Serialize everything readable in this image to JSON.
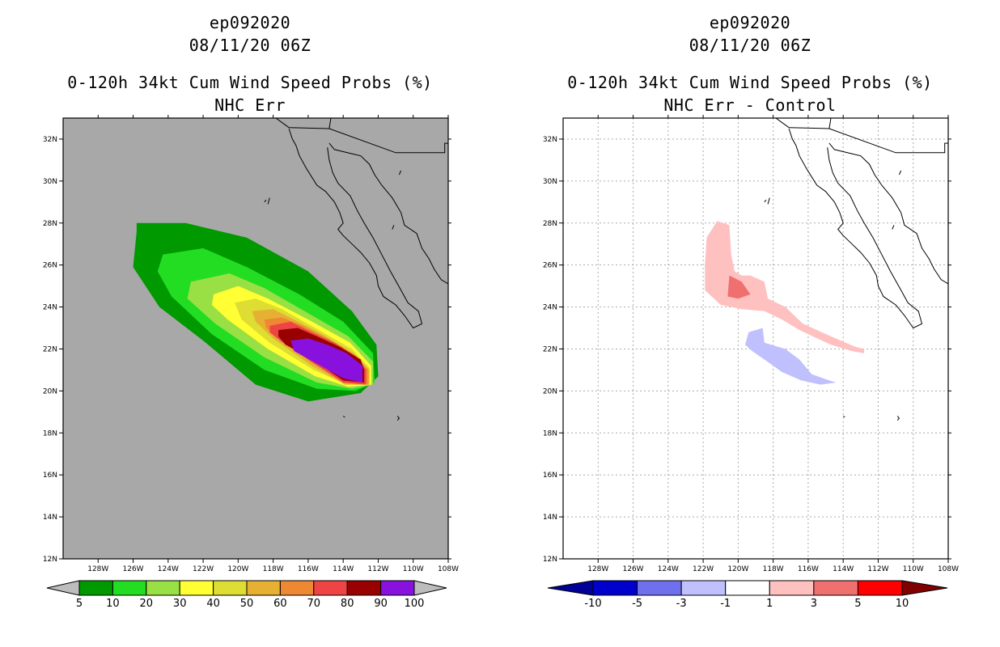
{
  "panels": [
    {
      "storm_id": "ep092020",
      "datetime": "08/11/20 06Z",
      "product": "0-120h 34kt Cum Wind Speed Probs (%)",
      "subtitle": "NHC Err",
      "background": "#a8a8a8",
      "gridlines": false,
      "colorbar_labels": [
        "5",
        "10",
        "20",
        "30",
        "40",
        "50",
        "60",
        "70",
        "80",
        "90",
        "100"
      ],
      "colorbar_colors": [
        "#009900",
        "#22dd22",
        "#99e044",
        "#ffff33",
        "#dddd33",
        "#e6b033",
        "#ee8833",
        "#ee4444",
        "#990000",
        "#8811dd"
      ],
      "colorbar_under": "#bdbdbd",
      "colorbar_over": "#bdbdbd"
    },
    {
      "storm_id": "ep092020",
      "datetime": "08/11/20 06Z",
      "product": "0-120h 34kt Cum Wind Speed Probs (%)",
      "subtitle": "NHC Err - Control",
      "background": "#ffffff",
      "gridlines": true,
      "colorbar_labels": [
        "-10",
        "-5",
        "-3",
        "-1",
        "1",
        "3",
        "5",
        "10"
      ],
      "colorbar_colors": [
        "#0000cc",
        "#7070ee",
        "#c0c0ff",
        "#ffffff",
        "#ffc0c0",
        "#f07070",
        "#ff0000"
      ],
      "colorbar_under": "#000099",
      "colorbar_over": "#800000"
    }
  ],
  "axes": {
    "lon_labels": [
      "128W",
      "126W",
      "124W",
      "122W",
      "120W",
      "118W",
      "116W",
      "114W",
      "112W",
      "110W",
      "108W"
    ],
    "lat_labels": [
      "12N",
      "14N",
      "16N",
      "18N",
      "20N",
      "22N",
      "24N",
      "26N",
      "28N",
      "30N",
      "32N"
    ],
    "lon_range_deg_w": [
      130,
      108
    ],
    "lat_range_deg_n": [
      12,
      33
    ]
  },
  "map_data": {
    "left_contours": [
      {
        "level": "5-10",
        "color": "#009900",
        "lonlat": [
          [
            -125.8,
            28
          ],
          [
            -123,
            28
          ],
          [
            -119.5,
            27.3
          ],
          [
            -116,
            25.7
          ],
          [
            -113.5,
            23.8
          ],
          [
            -112.1,
            22.2
          ],
          [
            -112,
            20.7
          ],
          [
            -113,
            19.9
          ],
          [
            -116,
            19.5
          ],
          [
            -119,
            20.3
          ],
          [
            -122,
            22.4
          ],
          [
            -124.5,
            24
          ],
          [
            -126,
            25.9
          ],
          [
            -125.8,
            27.6
          ]
        ]
      },
      {
        "level": "10-20",
        "color": "#22dd22",
        "lonlat": [
          [
            -124.3,
            26.5
          ],
          [
            -122,
            26.8
          ],
          [
            -119.5,
            25.9
          ],
          [
            -116.5,
            24.6
          ],
          [
            -114,
            23.3
          ],
          [
            -112.3,
            21.8
          ],
          [
            -112.2,
            20.4
          ],
          [
            -113.3,
            20
          ],
          [
            -115.5,
            20.1
          ],
          [
            -118.5,
            21
          ],
          [
            -121.5,
            22.7
          ],
          [
            -123.8,
            24.5
          ],
          [
            -124.6,
            25.7
          ]
        ]
      },
      {
        "level": "20-30",
        "color": "#99e044",
        "lonlat": [
          [
            -122.7,
            25.2
          ],
          [
            -120.5,
            25.6
          ],
          [
            -118.5,
            24.9
          ],
          [
            -116.2,
            23.8
          ],
          [
            -113.7,
            22.6
          ],
          [
            -112.3,
            21.4
          ],
          [
            -112.3,
            20.3
          ],
          [
            -113.5,
            20.1
          ],
          [
            -115.5,
            20.4
          ],
          [
            -118.5,
            21.6
          ],
          [
            -121.3,
            23.2
          ],
          [
            -122.9,
            24.4
          ]
        ]
      },
      {
        "level": "30-40",
        "color": "#ffff33",
        "lonlat": [
          [
            -121.4,
            24.6
          ],
          [
            -120,
            25
          ],
          [
            -118.3,
            24.4
          ],
          [
            -116,
            23.4
          ],
          [
            -113.6,
            22.3
          ],
          [
            -112.4,
            21.2
          ],
          [
            -112.4,
            20.3
          ],
          [
            -113.7,
            20.2
          ],
          [
            -115.6,
            20.7
          ],
          [
            -118.3,
            22
          ],
          [
            -120.6,
            23.4
          ],
          [
            -121.5,
            24.1
          ]
        ]
      },
      {
        "level": "40-50",
        "color": "#dddd33",
        "lonlat": [
          [
            -120.2,
            24.2
          ],
          [
            -119,
            24.4
          ],
          [
            -117.5,
            23.9
          ],
          [
            -115.6,
            23
          ],
          [
            -113.5,
            22
          ],
          [
            -112.5,
            21.1
          ],
          [
            -112.5,
            20.3
          ],
          [
            -113.8,
            20.3
          ],
          [
            -115.7,
            21
          ],
          [
            -118.2,
            22.3
          ],
          [
            -119.8,
            23.4
          ]
        ]
      },
      {
        "level": "50-60",
        "color": "#e6b033",
        "lonlat": [
          [
            -119.2,
            23.8
          ],
          [
            -118,
            23.9
          ],
          [
            -116.8,
            23.4
          ],
          [
            -115.2,
            22.7
          ],
          [
            -113.4,
            21.8
          ],
          [
            -112.5,
            21
          ],
          [
            -112.5,
            20.3
          ],
          [
            -113.9,
            20.3
          ],
          [
            -115.8,
            21.2
          ],
          [
            -118,
            22.5
          ],
          [
            -119,
            23.3
          ]
        ]
      },
      {
        "level": "60-70",
        "color": "#ee8833",
        "lonlat": [
          [
            -118.5,
            23.4
          ],
          [
            -117.5,
            23.5
          ],
          [
            -116.3,
            23.1
          ],
          [
            -114.9,
            22.5
          ],
          [
            -113.3,
            21.7
          ],
          [
            -112.6,
            21
          ],
          [
            -112.6,
            20.3
          ],
          [
            -113.9,
            20.4
          ],
          [
            -115.9,
            21.4
          ],
          [
            -117.8,
            22.6
          ],
          [
            -118.4,
            23
          ]
        ]
      },
      {
        "level": "70-80",
        "color": "#ee4444",
        "lonlat": [
          [
            -118.2,
            23.1
          ],
          [
            -117,
            23.3
          ],
          [
            -115.8,
            22.8
          ],
          [
            -114.5,
            22.3
          ],
          [
            -113.2,
            21.6
          ],
          [
            -112.7,
            21
          ],
          [
            -112.7,
            20.3
          ],
          [
            -114,
            20.4
          ],
          [
            -116,
            21.5
          ],
          [
            -117.6,
            22.4
          ],
          [
            -118.2,
            22.8
          ]
        ]
      },
      {
        "level": "80-90",
        "color": "#990000",
        "lonlat": [
          [
            -117.7,
            22.9
          ],
          [
            -116.6,
            23
          ],
          [
            -115.5,
            22.6
          ],
          [
            -114.2,
            22.1
          ],
          [
            -113,
            21.5
          ],
          [
            -112.8,
            21
          ],
          [
            -112.8,
            20.4
          ],
          [
            -114,
            20.5
          ],
          [
            -115.9,
            21.6
          ],
          [
            -117.3,
            22.2
          ],
          [
            -117.7,
            22.6
          ]
        ]
      },
      {
        "level": "90-100",
        "color": "#8811dd",
        "lonlat": [
          [
            -117,
            22.4
          ],
          [
            -116,
            22.5
          ],
          [
            -114.9,
            22.2
          ],
          [
            -113.8,
            21.8
          ],
          [
            -112.9,
            21.2
          ],
          [
            -112.9,
            20.4
          ],
          [
            -114,
            20.6
          ],
          [
            -115.5,
            21.3
          ],
          [
            -116.8,
            21.9
          ]
        ]
      }
    ],
    "right_contours": [
      {
        "level": "1-3",
        "color": "#ffc0c0",
        "lonlat": [
          [
            -121.2,
            28.1
          ],
          [
            -120.5,
            27.9
          ],
          [
            -120.4,
            26.5
          ],
          [
            -120.2,
            25.7
          ],
          [
            -119.8,
            25.5
          ],
          [
            -119.3,
            25.5
          ],
          [
            -118.5,
            25.2
          ],
          [
            -118.3,
            24.4
          ],
          [
            -117.3,
            24
          ],
          [
            -116.3,
            23.2
          ],
          [
            -114.7,
            22.6
          ],
          [
            -113.3,
            22.1
          ],
          [
            -112.8,
            22
          ],
          [
            -112.8,
            21.8
          ],
          [
            -113.5,
            21.9
          ],
          [
            -114.7,
            22.2
          ],
          [
            -116.5,
            22.9
          ],
          [
            -117.5,
            23.4
          ],
          [
            -118.5,
            23.8
          ],
          [
            -119.8,
            23.9
          ],
          [
            -121,
            24.1
          ],
          [
            -121.9,
            24.8
          ],
          [
            -121.9,
            26
          ],
          [
            -121.8,
            27.3
          ]
        ]
      },
      {
        "level": "3-5",
        "color": "#f07070",
        "lonlat": [
          [
            -120.5,
            25.5
          ],
          [
            -119.8,
            25.2
          ],
          [
            -119.3,
            24.6
          ],
          [
            -120,
            24.4
          ],
          [
            -120.6,
            24.5
          ]
        ]
      },
      {
        "level": "-3--1",
        "color": "#c0c0ff",
        "lonlat": [
          [
            -119.4,
            22.8
          ],
          [
            -118.6,
            23
          ],
          [
            -118.5,
            22.3
          ],
          [
            -117.3,
            22
          ],
          [
            -116.5,
            21.5
          ],
          [
            -115.8,
            20.8
          ],
          [
            -114.8,
            20.5
          ],
          [
            -114.4,
            20.4
          ],
          [
            -115.3,
            20.3
          ],
          [
            -116.4,
            20.5
          ],
          [
            -117.5,
            20.9
          ],
          [
            -118.5,
            21.5
          ],
          [
            -119.2,
            21.9
          ],
          [
            -119.6,
            22.2
          ]
        ]
      }
    ],
    "coastlines": [
      [
        [
          -117.1,
          32.5
        ],
        [
          -116.9,
          32
        ],
        [
          -116.7,
          31.7
        ],
        [
          -116.5,
          31.2
        ],
        [
          -116.1,
          30.6
        ],
        [
          -115.8,
          30.2
        ],
        [
          -115.5,
          29.8
        ],
        [
          -115,
          29.5
        ],
        [
          -114.5,
          29
        ],
        [
          -114.2,
          28.5
        ],
        [
          -114,
          28
        ],
        [
          -114.3,
          27.7
        ],
        [
          -114,
          27.4
        ],
        [
          -113.5,
          27
        ],
        [
          -113,
          26.6
        ],
        [
          -112.5,
          26.1
        ],
        [
          -112.1,
          25.5
        ],
        [
          -112,
          25
        ],
        [
          -111.7,
          24.5
        ],
        [
          -111,
          24.1
        ],
        [
          -110.5,
          23.6
        ],
        [
          -110,
          23
        ],
        [
          -109.5,
          23.2
        ],
        [
          -109.7,
          23.8
        ],
        [
          -110.3,
          24.2
        ],
        [
          -110.7,
          24.8
        ],
        [
          -111.3,
          25.7
        ],
        [
          -111.8,
          26.5
        ],
        [
          -112.3,
          27.3
        ],
        [
          -112.8,
          28
        ],
        [
          -113.2,
          28.6
        ],
        [
          -113.6,
          29.3
        ],
        [
          -114.3,
          29.9
        ],
        [
          -114.6,
          30.4
        ],
        [
          -114.8,
          31
        ],
        [
          -114.9,
          31.6
        ]
      ],
      [
        [
          -114.8,
          31.8
        ],
        [
          -114.5,
          31.5
        ],
        [
          -113.5,
          31.3
        ],
        [
          -113,
          31.2
        ],
        [
          -112.5,
          30.8
        ],
        [
          -112.2,
          30.3
        ],
        [
          -111.8,
          29.8
        ],
        [
          -111.2,
          29.2
        ],
        [
          -110.7,
          28.5
        ],
        [
          -110.5,
          27.9
        ],
        [
          -109.8,
          27.5
        ],
        [
          -109.5,
          26.8
        ],
        [
          -109.1,
          26.3
        ],
        [
          -108.8,
          25.8
        ],
        [
          -108.4,
          25.3
        ],
        [
          -108,
          25.1
        ]
      ],
      [
        [
          -118.3,
          28.9
        ],
        [
          -118.2,
          29.2
        ]
      ],
      [
        [
          -114.0,
          18.8
        ],
        [
          -113.9,
          18.75
        ]
      ],
      [
        [
          -110.9,
          18.8
        ],
        [
          -110.8,
          18.7
        ],
        [
          -110.9,
          18.6
        ]
      ],
      [
        [
          -111.2,
          27.7
        ],
        [
          -111.1,
          27.9
        ]
      ],
      [
        [
          -118.5,
          29.0
        ],
        [
          -118.4,
          29.1
        ]
      ],
      [
        [
          -110.8,
          30.3
        ],
        [
          -110.7,
          30.5
        ]
      ]
    ],
    "borders": [
      [
        [
          -117.1,
          32.55
        ],
        [
          -114.8,
          32.5
        ],
        [
          -111,
          31.35
        ],
        [
          -108.2,
          31.35
        ],
        [
          -108.2,
          31.8
        ],
        [
          -106.5,
          31.8
        ]
      ],
      [
        [
          -114.8,
          32.5
        ],
        [
          -114.7,
          33.0
        ]
      ],
      [
        [
          -119.5,
          34
        ],
        [
          -117.1,
          32.55
        ]
      ]
    ]
  }
}
